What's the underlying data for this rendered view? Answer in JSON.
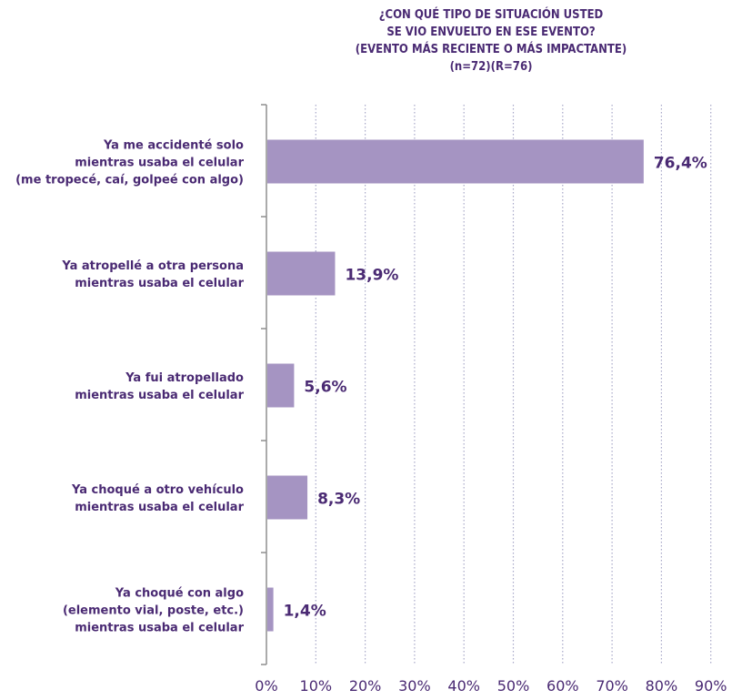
{
  "chart_data": {
    "type": "bar",
    "orientation": "horizontal",
    "title_lines": [
      "¿CON QUÉ TIPO DE SITUACIÓN USTED",
      "SE VIO ENVUELTO EN ESE EVENTO?",
      "(EVENTO MÁS RECIENTE O MÁS IMPACTANTE)",
      "(n=72)(R=76)"
    ],
    "categories": [
      [
        "Ya me accidenté solo",
        "mientras usaba el celular",
        "(me tropecé, caí, golpeé con algo)"
      ],
      [
        "Ya atropellé a otra persona",
        "mientras usaba el celular"
      ],
      [
        "Ya fui atropellado",
        "mientras usaba el celular"
      ],
      [
        "Ya choqué a otro vehículo",
        "mientras usaba el celular"
      ],
      [
        "Ya choqué con algo",
        "(elemento vial, poste, etc.)",
        "mientras usaba el celular"
      ]
    ],
    "values": [
      76.4,
      13.9,
      5.6,
      8.3,
      1.4
    ],
    "value_labels": [
      "76,4%",
      "13,9%",
      "5,6%",
      "8,3%",
      "1,4%"
    ],
    "xlim": [
      0,
      90
    ],
    "xticks": [
      0,
      10,
      20,
      30,
      40,
      50,
      60,
      70,
      80,
      90
    ],
    "xtick_labels": [
      "0%",
      "10%",
      "20%",
      "30%",
      "40%",
      "50%",
      "60%",
      "70%",
      "80%",
      "90%"
    ],
    "grid": "vertical dotted",
    "colors": {
      "bar": "#a594c2",
      "value_label": "#4a2a73",
      "category_label": "#4a2a73",
      "tick_label": "#4a2a73",
      "title": "#4a2a73",
      "axis": "#8f8f8f",
      "grid": "#a8a8c8"
    }
  }
}
